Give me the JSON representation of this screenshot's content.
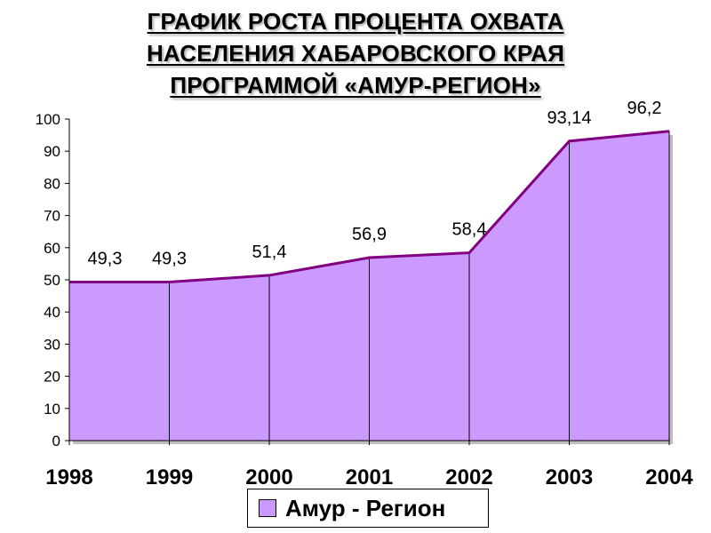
{
  "title_lines": [
    "ГРАФИК РОСТА ПРОЦЕНТА ОХВАТА",
    "НАСЕЛЕНИЯ ХАБАРОВСКОГО КРАЯ",
    "ПРОГРАММОЙ «АМУР-РЕГИОН»"
  ],
  "colors": {
    "area_fill": "#cc99ff",
    "line": "#800080",
    "axis": "#000000"
  },
  "chart_data": {
    "type": "area",
    "title": "ГРАФИК РОСТА ПРОЦЕНТА ОХВАТА НАСЕЛЕНИЯ ХАБАРОВСКОГО КРАЯ ПРОГРАММОЙ «АМУР-РЕГИОН»",
    "categories": [
      "1998",
      "1999",
      "2000",
      "2001",
      "2002",
      "2003",
      "2004"
    ],
    "series": [
      {
        "name": "Амур - Регион",
        "values": [
          49.3,
          49.3,
          51.4,
          56.9,
          58.4,
          93.14,
          96.2
        ],
        "labels": [
          "49,3",
          "49,3",
          "51,4",
          "56,9",
          "58,4",
          "93,14",
          "96,2"
        ]
      }
    ],
    "ylim": [
      0,
      100
    ],
    "yticks": [
      "0",
      "10",
      "20",
      "30",
      "40",
      "50",
      "60",
      "70",
      "80",
      "90",
      "100"
    ],
    "xlabel": "",
    "ylabel": "",
    "grid": false,
    "legend_position": "bottom"
  }
}
